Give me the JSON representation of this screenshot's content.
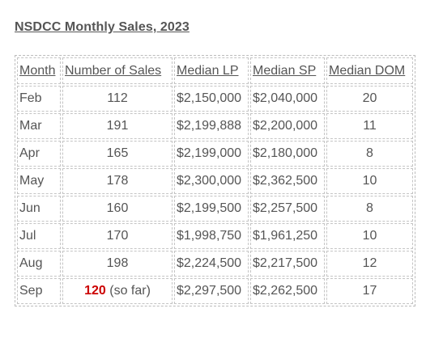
{
  "title": "NSDCC Monthly Sales, 2023",
  "table": {
    "headers": {
      "month": "Month",
      "num_sales": "Number of Sales",
      "median_lp": "Median LP",
      "median_sp": "Median SP",
      "median_dom": "Median DOM"
    },
    "rows": [
      {
        "month": "Feb",
        "num_sales": "112",
        "median_lp": "$2,150,000",
        "median_sp": "$2,040,000",
        "median_dom": "20"
      },
      {
        "month": "Mar",
        "num_sales": "191",
        "median_lp": "$2,199,888",
        "median_sp": "$2,200,000",
        "median_dom": "11"
      },
      {
        "month": "Apr",
        "num_sales": "165",
        "median_lp": "$2,199,000",
        "median_sp": "$2,180,000",
        "median_dom": "8"
      },
      {
        "month": "May",
        "num_sales": "178",
        "median_lp": "$2,300,000",
        "median_sp": "$2,362,500",
        "median_dom": "10"
      },
      {
        "month": "Jun",
        "num_sales": "160",
        "median_lp": "$2,199,500",
        "median_sp": "$2,257,500",
        "median_dom": "8"
      },
      {
        "month": "Jul",
        "num_sales": "170",
        "median_lp": "$1,998,750",
        "median_sp": "$1,961,250",
        "median_dom": "10"
      },
      {
        "month": "Aug",
        "num_sales": "198",
        "median_lp": "$2,224,500",
        "median_sp": "$2,217,500",
        "median_dom": "12"
      },
      {
        "month": "Sep",
        "num_sales": "120",
        "num_sales_note": "(so far)",
        "median_lp": "$2,297,500",
        "median_sp": "$2,262,500",
        "median_dom": "17"
      }
    ]
  },
  "colors": {
    "text": "#555555",
    "highlight": "#cc0000",
    "border": "#c4c4c4"
  }
}
